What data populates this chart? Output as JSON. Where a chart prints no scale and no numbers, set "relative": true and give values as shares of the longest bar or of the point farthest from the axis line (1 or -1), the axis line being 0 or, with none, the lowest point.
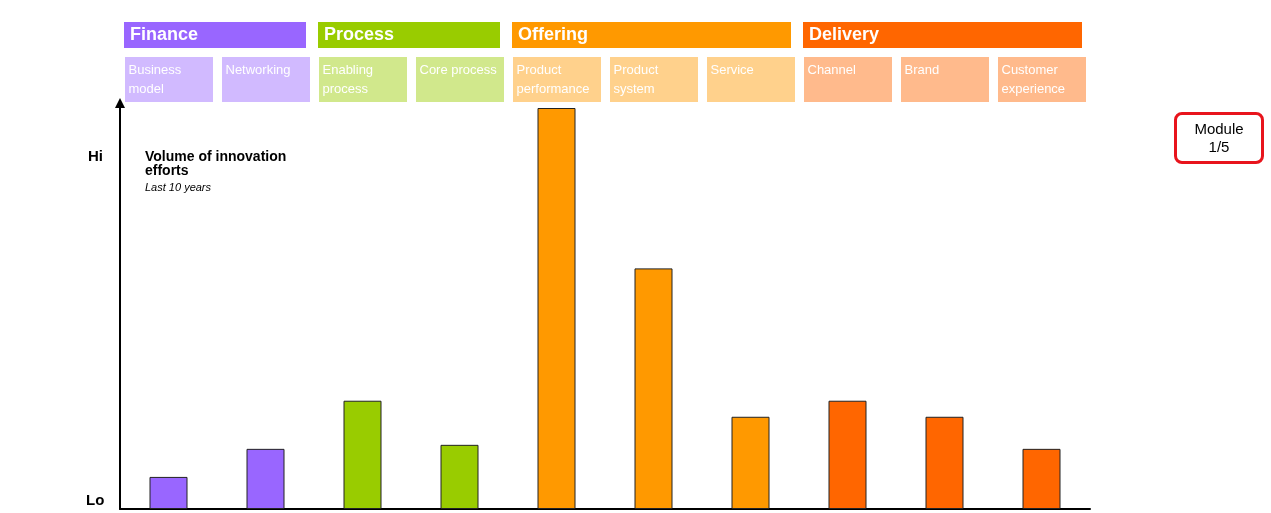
{
  "chart_data": {
    "type": "bar",
    "title": "Volume of innovation efforts",
    "subtitle": "Last 10 years",
    "categories": [
      "Business model",
      "Networking",
      "Enabling process",
      "Core process",
      "Product performance",
      "Product system",
      "Service",
      "Channel",
      "Brand",
      "Customer experience"
    ],
    "values": [
      0.08,
      0.15,
      0.27,
      0.16,
      1,
      0.6,
      0.23,
      0.27,
      0.23,
      0.15
    ],
    "colors": [
      "#9966ff",
      "#9966ff",
      "#99cc00",
      "#99cc00",
      "#ff9900",
      "#ff9900",
      "#ff9900",
      "#ff6600",
      "#ff6600",
      "#ff6600"
    ],
    "relative": true,
    "annotations": [
      "Finance",
      "Process",
      "Offering",
      "Delivery",
      "Hi",
      "Lo",
      "Module 1/5"
    ]
  }
}
